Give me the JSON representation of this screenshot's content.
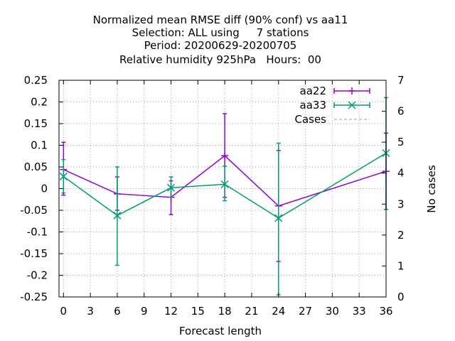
{
  "chart_data": {
    "type": "line",
    "title_lines": [
      "Normalized mean RMSE diff (90% conf) vs aa11",
      "Selection: ALL using     7 stations",
      "Period: 20200629-20200705",
      "Relative humidity 925hPa   Hours:  00"
    ],
    "xlabel": "Forecast length",
    "ylabel": "",
    "y2label": "No cases",
    "xlim": [
      -0.5,
      36
    ],
    "ylim": [
      -0.25,
      0.25
    ],
    "y2lim": [
      0,
      7
    ],
    "xticks": [
      0,
      3,
      6,
      9,
      12,
      15,
      18,
      21,
      24,
      27,
      30,
      33,
      36
    ],
    "yticks": [
      -0.25,
      -0.2,
      -0.15,
      -0.1,
      -0.05,
      0,
      0.05,
      0.1,
      0.15,
      0.2,
      0.25
    ],
    "ytick_labels": [
      "-0.25",
      "-0.2",
      "-0.15",
      "-0.1",
      "-0.05",
      "0",
      "0.05",
      "0.1",
      "0.15",
      "0.2",
      "0.25"
    ],
    "y2ticks": [
      0,
      1,
      2,
      3,
      4,
      5,
      6,
      7
    ],
    "grid": true,
    "legend_position": "top-right",
    "series": [
      {
        "name": "aa22",
        "color": "#9400d3",
        "marker": "plus",
        "x": [
          0,
          6,
          12,
          18,
          24,
          36
        ],
        "y": [
          0.044,
          -0.012,
          -0.02,
          0.076,
          -0.04,
          0.04
        ],
        "ylow": [
          -0.015,
          -0.05,
          -0.06,
          -0.02,
          -0.168,
          -0.048
        ],
        "yhigh": [
          0.107,
          0.027,
          0.018,
          0.173,
          0.088,
          0.128
        ]
      },
      {
        "name": "aa33",
        "color": "#009e73",
        "marker": "cross",
        "x": [
          0,
          6,
          12,
          18,
          24,
          36
        ],
        "y": [
          0.028,
          -0.062,
          0.002,
          0.01,
          -0.068,
          0.082
        ],
        "ylow": [
          -0.01,
          -0.177,
          -0.02,
          -0.028,
          -0.245,
          -0.048
        ],
        "yhigh": [
          0.067,
          0.05,
          0.027,
          0.052,
          0.105,
          0.21
        ]
      },
      {
        "name": "Cases",
        "color": "#a0a0a0",
        "style": "dashed",
        "axis": "y2",
        "x": [
          0,
          6,
          12,
          18,
          24,
          36
        ],
        "y": [
          7,
          7,
          7,
          7,
          7,
          7
        ]
      }
    ]
  }
}
